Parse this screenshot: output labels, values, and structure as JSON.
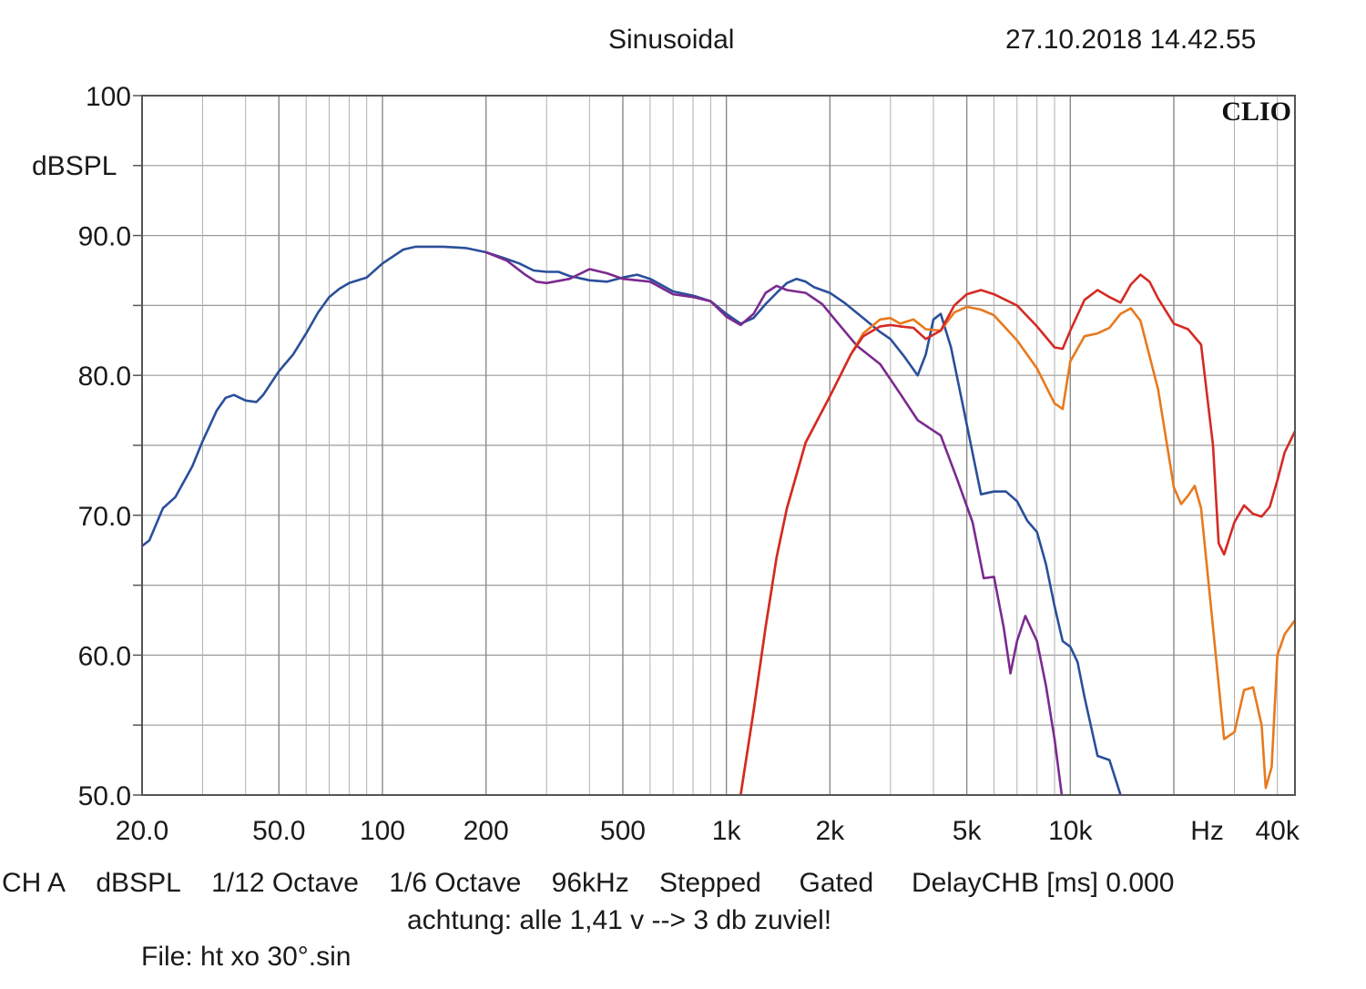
{
  "header": {
    "mode": "Sinusoidal",
    "datetime": "27.10.2018 14.42.55"
  },
  "footer": {
    "channel": "CH A",
    "unit": "dBSPL",
    "smoothing": "1/12 Octave",
    "resolution": "1/6 Octave",
    "sample_rate": "96kHz",
    "sweep": "Stepped",
    "window": "Gated",
    "delay": "DelayCHB [ms] 0.000",
    "note": "achtung: alle 1,41 v --> 3 db zuviel!",
    "file": "File: ht xo 30°.sin"
  },
  "chart_data": {
    "type": "line",
    "logo": "CLIO",
    "xscale": "log",
    "xlim": [
      20,
      45000
    ],
    "ylim": [
      50,
      100
    ],
    "ylabel": "dBSPL",
    "grid": true,
    "y_ticks": [
      {
        "value": 100,
        "label": "100"
      },
      {
        "value": 90,
        "label": "90.0"
      },
      {
        "value": 80,
        "label": "80.0"
      },
      {
        "value": 70,
        "label": "70.0"
      },
      {
        "value": 60,
        "label": "60.0"
      },
      {
        "value": 50,
        "label": "50.0"
      }
    ],
    "x_ticks": [
      {
        "value": 20,
        "label": "20.0"
      },
      {
        "value": 50,
        "label": "50.0"
      },
      {
        "value": 100,
        "label": "100"
      },
      {
        "value": 200,
        "label": "200"
      },
      {
        "value": 500,
        "label": "500"
      },
      {
        "value": 1000,
        "label": "1k"
      },
      {
        "value": 2000,
        "label": "2k"
      },
      {
        "value": 5000,
        "label": "5k"
      },
      {
        "value": 10000,
        "label": "10k"
      },
      {
        "value": 25000,
        "label": "Hz"
      },
      {
        "value": 40000,
        "label": "40k"
      }
    ],
    "series": [
      {
        "color": "#2a4f9a",
        "points": [
          [
            20,
            67.8
          ],
          [
            21,
            68.2
          ],
          [
            23,
            70.5
          ],
          [
            25,
            71.3
          ],
          [
            28,
            73.5
          ],
          [
            30,
            75.3
          ],
          [
            33,
            77.5
          ],
          [
            35,
            78.4
          ],
          [
            37,
            78.6
          ],
          [
            40,
            78.2
          ],
          [
            43,
            78.1
          ],
          [
            45,
            78.6
          ],
          [
            50,
            80.3
          ],
          [
            55,
            81.5
          ],
          [
            60,
            83
          ],
          [
            65,
            84.5
          ],
          [
            70,
            85.6
          ],
          [
            75,
            86.2
          ],
          [
            80,
            86.6
          ],
          [
            90,
            87
          ],
          [
            100,
            88
          ],
          [
            115,
            89
          ],
          [
            125,
            89.2
          ],
          [
            150,
            89.2
          ],
          [
            175,
            89.1
          ],
          [
            200,
            88.8
          ],
          [
            225,
            88.4
          ],
          [
            250,
            88
          ],
          [
            275,
            87.5
          ],
          [
            300,
            87.4
          ],
          [
            325,
            87.4
          ],
          [
            350,
            87.1
          ],
          [
            400,
            86.8
          ],
          [
            450,
            86.7
          ],
          [
            500,
            87
          ],
          [
            550,
            87.2
          ],
          [
            600,
            86.9
          ],
          [
            700,
            86
          ],
          [
            800,
            85.7
          ],
          [
            900,
            85.3
          ],
          [
            1000,
            84.4
          ],
          [
            1100,
            83.7
          ],
          [
            1200,
            84.1
          ],
          [
            1300,
            85.1
          ],
          [
            1400,
            85.9
          ],
          [
            1500,
            86.6
          ],
          [
            1600,
            86.9
          ],
          [
            1700,
            86.7
          ],
          [
            1800,
            86.3
          ],
          [
            2000,
            85.9
          ],
          [
            2200,
            85.2
          ],
          [
            2500,
            84.1
          ],
          [
            2800,
            83.1
          ],
          [
            3000,
            82.6
          ],
          [
            3300,
            81.3
          ],
          [
            3600,
            80
          ],
          [
            3800,
            81.5
          ],
          [
            4000,
            84
          ],
          [
            4200,
            84.4
          ],
          [
            4500,
            82
          ],
          [
            5000,
            76.5
          ],
          [
            5500,
            71.5
          ],
          [
            6000,
            71.7
          ],
          [
            6500,
            71.7
          ],
          [
            7000,
            71
          ],
          [
            7500,
            69.6
          ],
          [
            8000,
            68.8
          ],
          [
            8500,
            66.5
          ],
          [
            9000,
            63.5
          ],
          [
            9500,
            61
          ],
          [
            10000,
            60.6
          ],
          [
            10500,
            59.5
          ],
          [
            11000,
            57
          ],
          [
            12000,
            52.8
          ],
          [
            13000,
            52.5
          ],
          [
            14000,
            50
          ]
        ]
      },
      {
        "color": "#7b2a8e",
        "points": [
          [
            200,
            88.8
          ],
          [
            230,
            88.2
          ],
          [
            260,
            87.2
          ],
          [
            280,
            86.7
          ],
          [
            300,
            86.6
          ],
          [
            350,
            86.9
          ],
          [
            400,
            87.6
          ],
          [
            450,
            87.3
          ],
          [
            500,
            86.9
          ],
          [
            600,
            86.7
          ],
          [
            700,
            85.8
          ],
          [
            800,
            85.6
          ],
          [
            900,
            85.3
          ],
          [
            1000,
            84.2
          ],
          [
            1100,
            83.6
          ],
          [
            1200,
            84.4
          ],
          [
            1300,
            85.9
          ],
          [
            1400,
            86.4
          ],
          [
            1500,
            86.1
          ],
          [
            1700,
            85.9
          ],
          [
            1900,
            85.1
          ],
          [
            2100,
            83.8
          ],
          [
            2400,
            82.1
          ],
          [
            2800,
            80.8
          ],
          [
            3200,
            78.7
          ],
          [
            3600,
            76.8
          ],
          [
            4200,
            75.7
          ],
          [
            4700,
            72.5
          ],
          [
            5200,
            69.5
          ],
          [
            5600,
            65.5
          ],
          [
            6000,
            65.6
          ],
          [
            6400,
            62
          ],
          [
            6700,
            58.7
          ],
          [
            7000,
            61
          ],
          [
            7400,
            62.8
          ],
          [
            8000,
            61
          ],
          [
            8500,
            57.8
          ],
          [
            9000,
            54
          ],
          [
            9500,
            49.5
          ]
        ]
      },
      {
        "color": "#e8791d",
        "points": [
          [
            1100,
            50
          ],
          [
            1200,
            56
          ],
          [
            1300,
            62
          ],
          [
            1400,
            67
          ],
          [
            1500,
            70.5
          ],
          [
            1700,
            75.2
          ],
          [
            2000,
            78.5
          ],
          [
            2300,
            81.5
          ],
          [
            2500,
            83
          ],
          [
            2800,
            84
          ],
          [
            3000,
            84.1
          ],
          [
            3200,
            83.7
          ],
          [
            3500,
            84
          ],
          [
            3800,
            83.3
          ],
          [
            4200,
            83.2
          ],
          [
            4600,
            84.5
          ],
          [
            5000,
            84.9
          ],
          [
            5500,
            84.7
          ],
          [
            6000,
            84.3
          ],
          [
            7000,
            82.5
          ],
          [
            8000,
            80.5
          ],
          [
            9000,
            78
          ],
          [
            9500,
            77.6
          ],
          [
            10000,
            81
          ],
          [
            11000,
            82.8
          ],
          [
            12000,
            83
          ],
          [
            13000,
            83.4
          ],
          [
            14000,
            84.4
          ],
          [
            15000,
            84.8
          ],
          [
            16000,
            83.9
          ],
          [
            18000,
            79
          ],
          [
            20000,
            72
          ],
          [
            21000,
            70.8
          ],
          [
            22000,
            71.4
          ],
          [
            23000,
            72.1
          ],
          [
            24000,
            70.5
          ],
          [
            26000,
            62
          ],
          [
            28000,
            54
          ],
          [
            30000,
            54.5
          ],
          [
            32000,
            57.5
          ],
          [
            34000,
            57.7
          ],
          [
            36000,
            55
          ],
          [
            37000,
            50.5
          ],
          [
            38500,
            52
          ],
          [
            40000,
            60
          ],
          [
            42000,
            61.5
          ],
          [
            45000,
            62.5
          ]
        ]
      },
      {
        "color": "#d42a24",
        "points": [
          [
            1100,
            50
          ],
          [
            1200,
            56
          ],
          [
            1300,
            62
          ],
          [
            1400,
            67
          ],
          [
            1500,
            70.5
          ],
          [
            1700,
            75.2
          ],
          [
            2000,
            78.5
          ],
          [
            2300,
            81.5
          ],
          [
            2500,
            82.8
          ],
          [
            2800,
            83.5
          ],
          [
            3000,
            83.6
          ],
          [
            3200,
            83.5
          ],
          [
            3500,
            83.4
          ],
          [
            3800,
            82.6
          ],
          [
            4200,
            83.2
          ],
          [
            4600,
            85
          ],
          [
            5000,
            85.8
          ],
          [
            5500,
            86.1
          ],
          [
            6000,
            85.8
          ],
          [
            7000,
            85
          ],
          [
            8000,
            83.5
          ],
          [
            9000,
            82
          ],
          [
            9500,
            81.9
          ],
          [
            10000,
            83.2
          ],
          [
            11000,
            85.4
          ],
          [
            12000,
            86.1
          ],
          [
            13000,
            85.6
          ],
          [
            14000,
            85.2
          ],
          [
            15000,
            86.5
          ],
          [
            16000,
            87.2
          ],
          [
            17000,
            86.7
          ],
          [
            18000,
            85.5
          ],
          [
            20000,
            83.7
          ],
          [
            22000,
            83.3
          ],
          [
            24000,
            82.2
          ],
          [
            26000,
            75
          ],
          [
            27000,
            68
          ],
          [
            28000,
            67.2
          ],
          [
            30000,
            69.5
          ],
          [
            32000,
            70.7
          ],
          [
            34000,
            70.1
          ],
          [
            36000,
            69.9
          ],
          [
            38000,
            70.6
          ],
          [
            40000,
            72.5
          ],
          [
            42000,
            74.5
          ],
          [
            45000,
            76
          ]
        ]
      }
    ]
  }
}
